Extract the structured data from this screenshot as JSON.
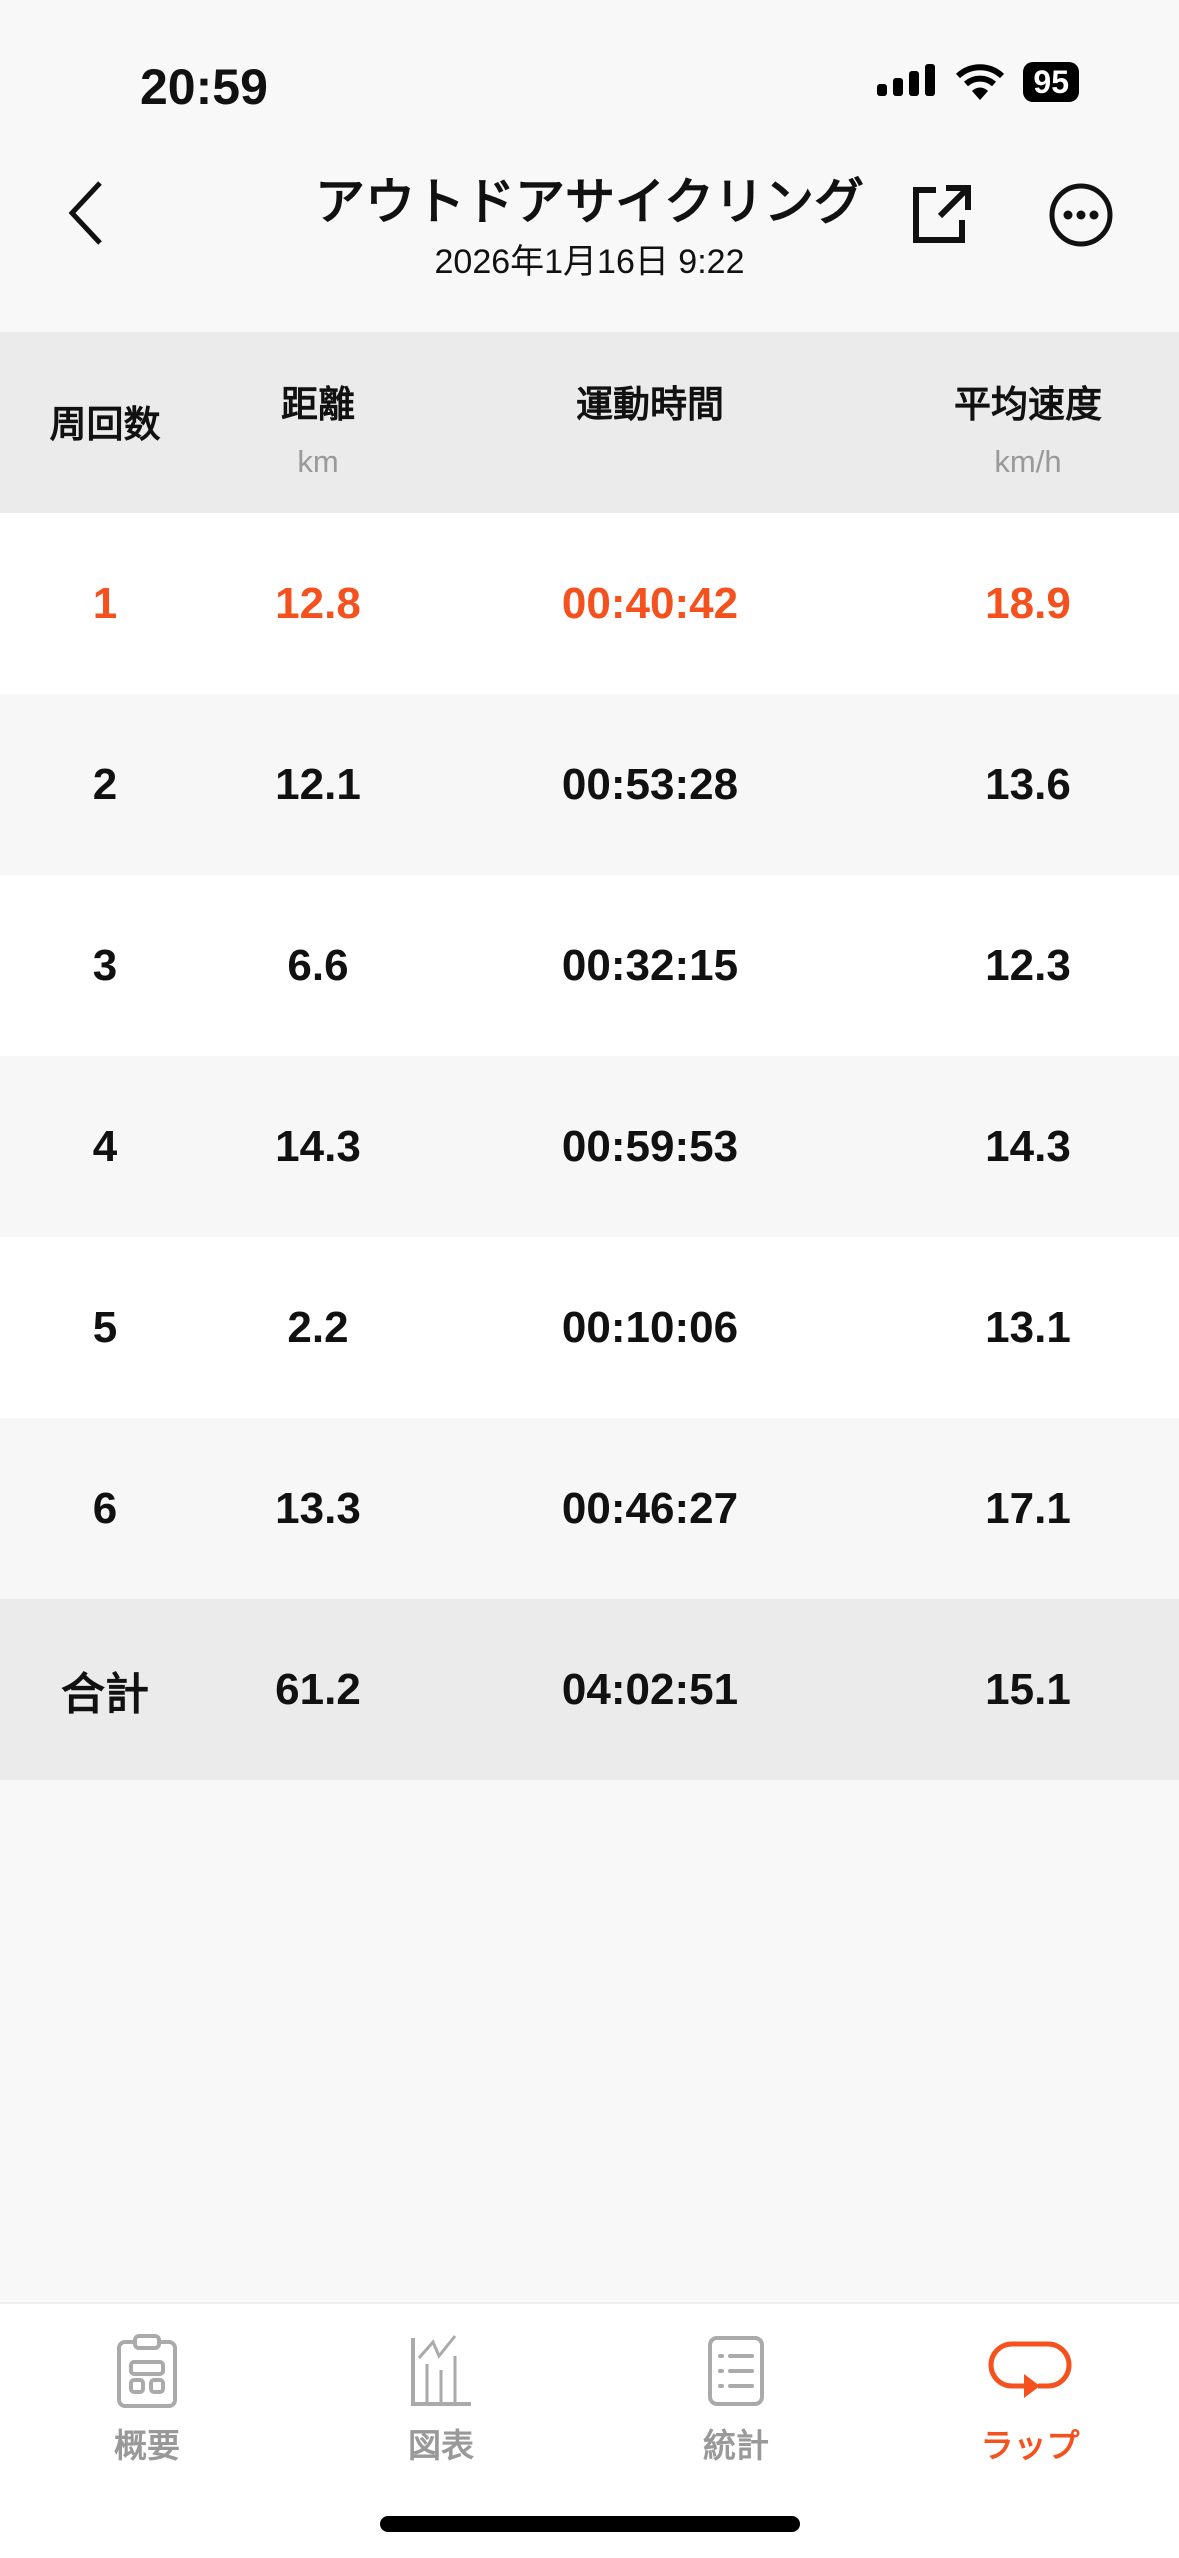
{
  "status_bar": {
    "time": "20:59",
    "battery": "95"
  },
  "header": {
    "title": "アウトドアサイクリング",
    "subtitle": "2026年1月16日 9:22"
  },
  "table": {
    "columns": [
      {
        "label": "周回数",
        "unit": ""
      },
      {
        "label": "距離",
        "unit": "km"
      },
      {
        "label": "運動時間",
        "unit": ""
      },
      {
        "label": "平均速度",
        "unit": "km/h"
      }
    ],
    "rows": [
      [
        "1",
        "12.8",
        "00:40:42",
        "18.9"
      ],
      [
        "2",
        "12.1",
        "00:53:28",
        "13.6"
      ],
      [
        "3",
        "6.6",
        "00:32:15",
        "12.3"
      ],
      [
        "4",
        "14.3",
        "00:59:53",
        "14.3"
      ],
      [
        "5",
        "2.2",
        "00:10:06",
        "13.1"
      ],
      [
        "6",
        "13.3",
        "00:46:27",
        "17.1"
      ]
    ],
    "total": [
      "合計",
      "61.2",
      "04:02:51",
      "15.1"
    ],
    "highlight_row": 1
  },
  "tabs": [
    {
      "label": "概要",
      "icon": "clipboard-icon"
    },
    {
      "label": "図表",
      "icon": "chart-icon"
    },
    {
      "label": "統計",
      "icon": "list-icon"
    },
    {
      "label": "ラップ",
      "icon": "lap-icon",
      "active": true
    }
  ],
  "colors": {
    "accent": "#f4511e",
    "inactive": "#999999"
  }
}
